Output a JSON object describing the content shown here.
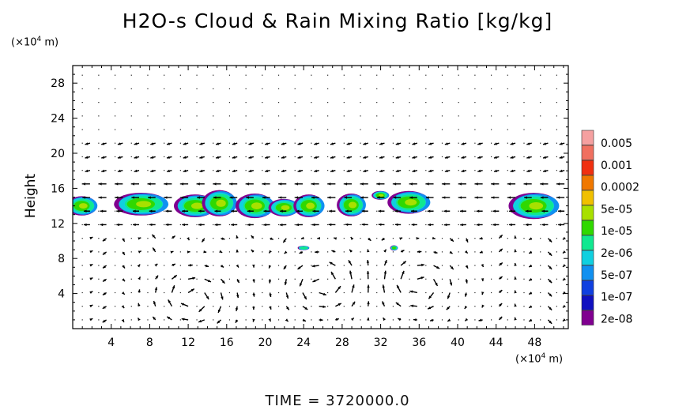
{
  "chart_data": {
    "type": "contour",
    "title": "H2O-s Cloud & Rain Mixing Ratio [kg/kg]",
    "ylabel": "Height",
    "yunit_label": "(×10⁴ m)",
    "xunit_label": "(×10⁴ m)",
    "time_label": "TIME = 3720000.0",
    "xlim": [
      0,
      51.5
    ],
    "ylim": [
      0,
      30
    ],
    "x_ticks": [
      "4",
      "8",
      "12",
      "16",
      "20",
      "24",
      "28",
      "32",
      "36",
      "40",
      "44",
      "48"
    ],
    "x_tick_values": [
      4,
      8,
      12,
      16,
      20,
      24,
      28,
      32,
      36,
      40,
      44,
      48
    ],
    "y_ticks": [
      "4",
      "8",
      "12",
      "16",
      "20",
      "24",
      "28"
    ],
    "y_tick_values": [
      4,
      8,
      12,
      16,
      20,
      24,
      28
    ],
    "colorbar": {
      "labels": [
        "0.005",
        "0.001",
        "0.0002",
        "5e-05",
        "1e-05",
        "2e-06",
        "5e-07",
        "1e-07",
        "2e-08"
      ],
      "colors": [
        "#f5a0a0",
        "#f07060",
        "#f03010",
        "#f07800",
        "#f0c000",
        "#a8e000",
        "#30d800",
        "#10e890",
        "#10d0e0",
        "#1090f0",
        "#1040e0",
        "#1010c0",
        "#800090"
      ]
    },
    "cloud_cells": [
      {
        "x": 1.0,
        "y": 14.0,
        "rx": 1.6,
        "ry": 1.1
      },
      {
        "x": 7.2,
        "y": 14.2,
        "rx": 2.8,
        "ry": 1.3
      },
      {
        "x": 12.8,
        "y": 14.0,
        "rx": 2.2,
        "ry": 1.3
      },
      {
        "x": 15.3,
        "y": 14.3,
        "rx": 1.8,
        "ry": 1.5
      },
      {
        "x": 19.0,
        "y": 14.0,
        "rx": 2.0,
        "ry": 1.4
      },
      {
        "x": 22.0,
        "y": 13.8,
        "rx": 1.6,
        "ry": 1.0
      },
      {
        "x": 24.6,
        "y": 14.0,
        "rx": 1.6,
        "ry": 1.3
      },
      {
        "x": 29.0,
        "y": 14.1,
        "rx": 1.5,
        "ry": 1.3
      },
      {
        "x": 32.0,
        "y": 15.2,
        "rx": 0.9,
        "ry": 0.5
      },
      {
        "x": 35.0,
        "y": 14.4,
        "rx": 2.2,
        "ry": 1.3
      },
      {
        "x": 48.0,
        "y": 14.0,
        "rx": 2.6,
        "ry": 1.5
      },
      {
        "x": 24.0,
        "y": 9.2,
        "rx": 0.6,
        "ry": 0.25
      },
      {
        "x": 33.4,
        "y": 9.2,
        "rx": 0.4,
        "ry": 0.3
      }
    ],
    "circulations": [
      {
        "x": 12.5,
        "y": 3.5,
        "direction": "cw"
      },
      {
        "x": 26.0,
        "y": 5.0,
        "direction": "ccw"
      },
      {
        "x": 36.0,
        "y": 5.0,
        "direction": "cw"
      }
    ]
  }
}
